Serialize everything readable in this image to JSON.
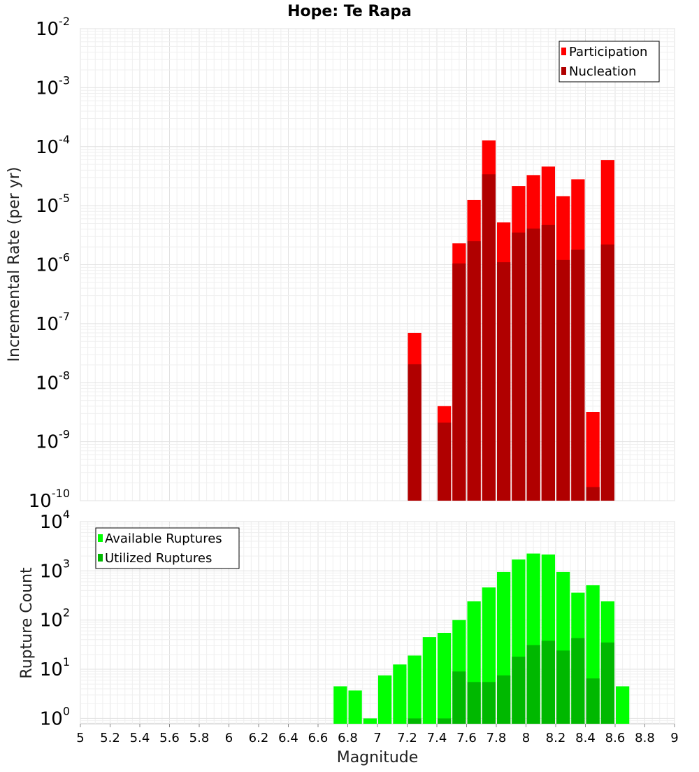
{
  "title": "Hope: Te Rapa",
  "chart_data": [
    {
      "type": "bar",
      "ylabel": "Incremental Rate (per yr)",
      "xlabel": "",
      "yscale": "log",
      "ylim": [
        1e-10,
        0.01
      ],
      "xlim": [
        5,
        9
      ],
      "grid": true,
      "bar_width": 0.1,
      "legend_position": "top-right",
      "y_tick_labels": [
        {
          "base": "10",
          "exp": "-10"
        },
        {
          "base": "10",
          "exp": "-9"
        },
        {
          "base": "10",
          "exp": "-8"
        },
        {
          "base": "10",
          "exp": "-7"
        },
        {
          "base": "10",
          "exp": "-6"
        },
        {
          "base": "10",
          "exp": "-5"
        },
        {
          "base": "10",
          "exp": "-4"
        },
        {
          "base": "10",
          "exp": "-3"
        },
        {
          "base": "10",
          "exp": "-2"
        }
      ],
      "x": [
        7.25,
        7.45,
        7.55,
        7.65,
        7.75,
        7.85,
        7.95,
        8.05,
        8.15,
        8.25,
        8.35,
        8.45,
        8.55
      ],
      "series": [
        {
          "name": "Participation",
          "color": "#ff0000",
          "values": [
            7e-08,
            4e-09,
            2.3e-06,
            1.25e-05,
            0.000128,
            5.2e-06,
            2.15e-05,
            3.3e-05,
            4.6e-05,
            1.45e-05,
            2.8e-05,
            3.2e-09,
            5.9e-05
          ]
        },
        {
          "name": "Nucleation",
          "color": "#b00000",
          "values": [
            2.05e-08,
            2.1e-09,
            1.05e-06,
            2.5e-06,
            3.4e-05,
            1.1e-06,
            3.5e-06,
            4.1e-06,
            4.7e-06,
            1.2e-06,
            1.8e-06,
            1.7e-10,
            2.2e-06
          ]
        }
      ]
    },
    {
      "type": "bar",
      "ylabel": "Rupture Count",
      "xlabel": "Magnitude",
      "yscale": "log",
      "ylim": [
        0.78,
        10000
      ],
      "xlim": [
        5,
        9
      ],
      "grid": true,
      "bar_width": 0.1,
      "legend_position": "top-left",
      "y_tick_labels": [
        {
          "base": "10",
          "exp": "0"
        },
        {
          "base": "10",
          "exp": "1"
        },
        {
          "base": "10",
          "exp": "2"
        },
        {
          "base": "10",
          "exp": "3"
        },
        {
          "base": "10",
          "exp": "4"
        }
      ],
      "x_tick_labels": [
        "5",
        "5.2",
        "5.4",
        "5.6",
        "5.8",
        "6",
        "6.2",
        "6.4",
        "6.6",
        "6.8",
        "7",
        "7.2",
        "7.4",
        "7.6",
        "7.8",
        "8",
        "8.2",
        "8.4",
        "8.6",
        "8.8",
        "9"
      ],
      "x": [
        6.75,
        6.85,
        6.95,
        7.05,
        7.15,
        7.25,
        7.35,
        7.45,
        7.55,
        7.65,
        7.75,
        7.85,
        7.95,
        8.05,
        8.15,
        8.25,
        8.35,
        8.45,
        8.55,
        8.65
      ],
      "series": [
        {
          "name": "Available Ruptures",
          "color": "#00ff00",
          "values": [
            4.5,
            3.7,
            1,
            7.5,
            12.5,
            19,
            45,
            55,
            100,
            240,
            460,
            950,
            1700,
            2250,
            2150,
            950,
            360,
            510,
            240,
            4.5
          ]
        },
        {
          "name": "Utilized Ruptures",
          "color": "#00b800",
          "values": [
            0,
            0,
            0,
            0,
            0,
            1,
            0,
            1,
            9,
            5.5,
            5.5,
            7.5,
            18,
            31,
            38,
            24,
            43,
            6.5,
            35,
            0
          ]
        }
      ]
    }
  ]
}
